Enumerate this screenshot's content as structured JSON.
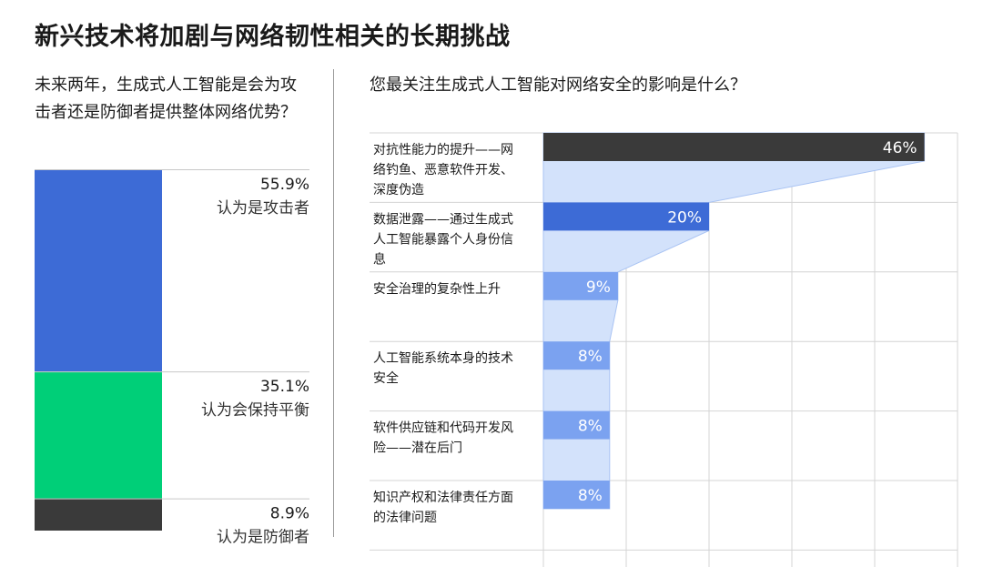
{
  "page": {
    "title": "新兴技术将加剧与网络韧性相关的长期挑战"
  },
  "left_panel": {
    "question": "未来两年，生成式人工智能是会为攻击者还是防御者提供整体网络优势？"
  },
  "right_panel": {
    "question": "您最关注生成式人工智能对网络安全的影响是什么？"
  },
  "chart_data": [
    {
      "type": "bar",
      "stacked": true,
      "orientation": "vertical",
      "categories": [
        "认为是攻击者",
        "认为会保持平衡",
        "认为是防御者"
      ],
      "values": [
        55.9,
        35.1,
        8.9
      ],
      "labels": [
        "55.9%",
        "35.1%",
        "8.9%"
      ],
      "colors": [
        "#3d6bd6",
        "#00cf78",
        "#3a3a3a"
      ]
    },
    {
      "type": "bar",
      "orientation": "horizontal",
      "categories": [
        "对抗性能力的提升——网络钓鱼、恶意软件开发、深度伪造",
        "数据泄露——通过生成式人工智能暴露个人身份信息",
        "安全治理的复杂性上升",
        "人工智能系统本身的技术安全",
        "软件供应链和代码开发风险——潜在后门",
        "知识产权和法律责任方面的法律问题"
      ],
      "values": [
        46,
        20,
        9,
        8,
        8,
        8
      ],
      "labels": [
        "46%",
        "20%",
        "9%",
        "8%",
        "8%",
        "8%"
      ],
      "colors": [
        "#3a3a3a",
        "#3d6bd6",
        "#7ba2f0",
        "#7ba2f0",
        "#7ba2f0",
        "#7ba2f0"
      ],
      "funnel_color": "#d3e2fb",
      "xlim": [
        0,
        50
      ],
      "grid": true
    }
  ]
}
